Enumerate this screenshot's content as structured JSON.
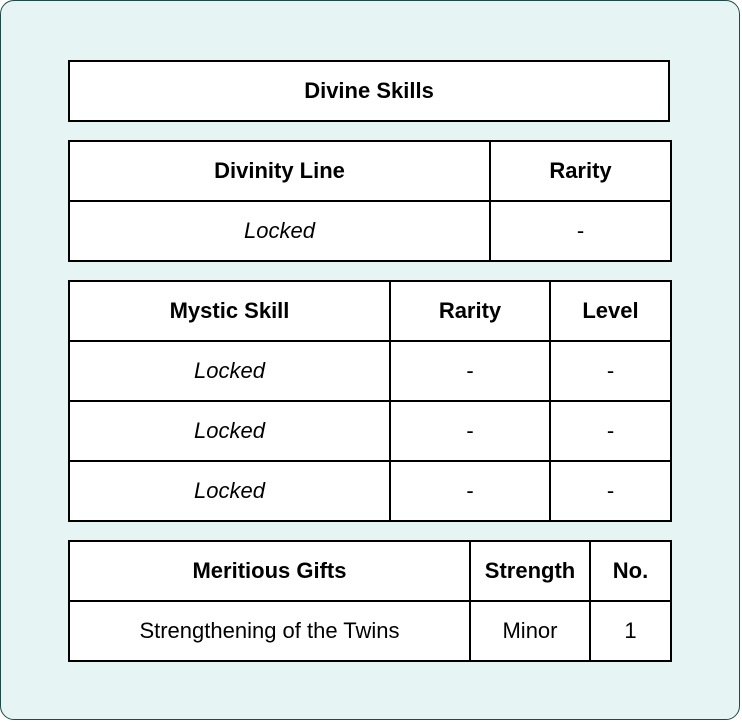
{
  "title": "Divine Skills",
  "divinity_table": {
    "headers": [
      "Divinity Line",
      "Rarity"
    ],
    "rows": [
      [
        "Locked",
        "-"
      ]
    ]
  },
  "mystic_table": {
    "headers": [
      "Mystic Skill",
      "Rarity",
      "Level"
    ],
    "rows": [
      [
        "Locked",
        "-",
        "-"
      ],
      [
        "Locked",
        "-",
        "-"
      ],
      [
        "Locked",
        "-",
        "-"
      ]
    ]
  },
  "gifts_table": {
    "headers": [
      "Meritious Gifts",
      "Strength",
      "No."
    ],
    "rows": [
      [
        "Strengthening of the Twins",
        "Minor",
        "1"
      ]
    ]
  }
}
